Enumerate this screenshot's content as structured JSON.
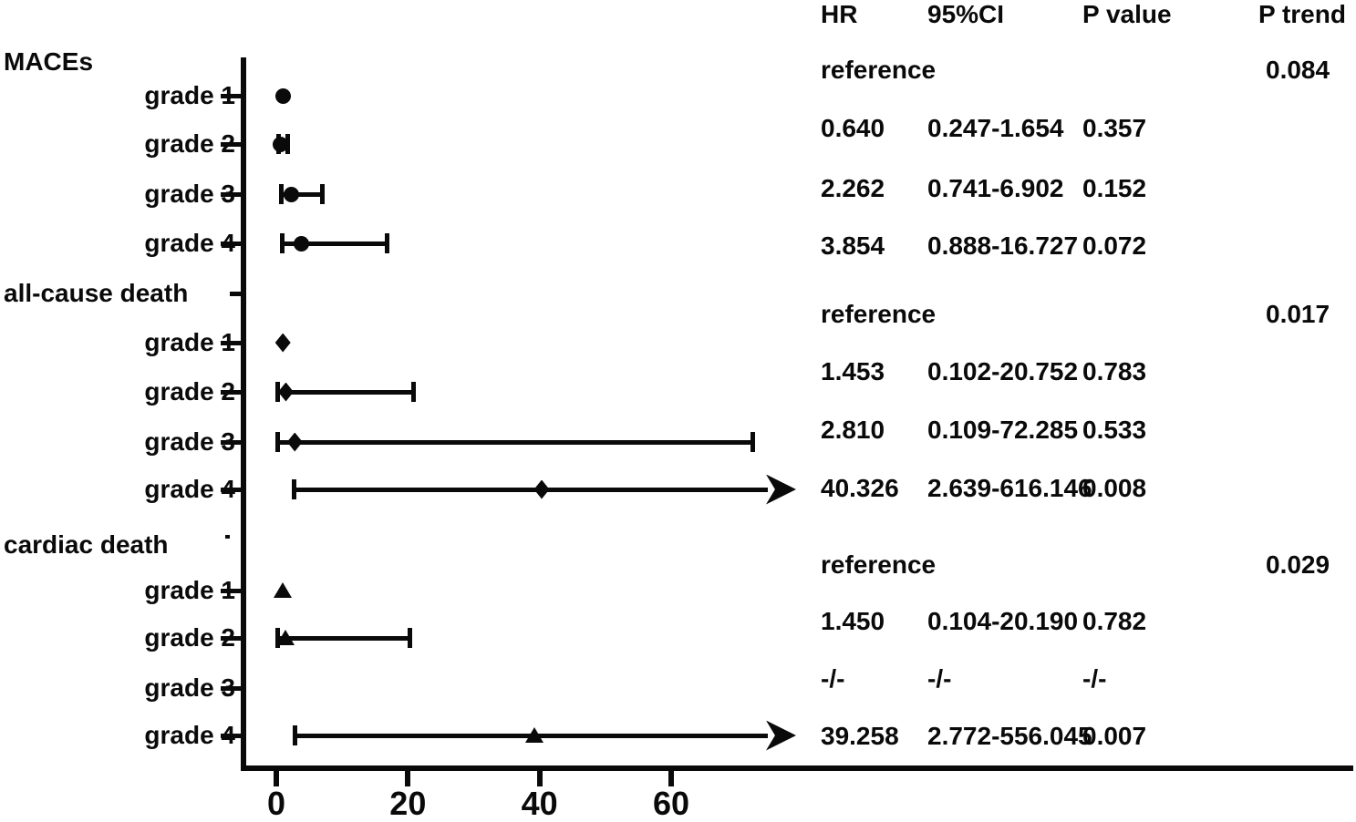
{
  "table": {
    "headers": [
      "HR",
      "95%CI",
      "P value",
      "P trend"
    ]
  },
  "chart_data": {
    "type": "forest",
    "title": "",
    "xlabel": "",
    "x_axis_represents": "hazard ratio",
    "xlim": [
      0,
      78
    ],
    "x_ticks": [
      0,
      20,
      40,
      60
    ],
    "x_tick_labels": [
      "0",
      "20",
      "40",
      "60"
    ],
    "grid": false,
    "groups": [
      {
        "label": "MACEs",
        "marker": "circle",
        "p_trend": "0.084",
        "rows": [
          {
            "label": "grade 1",
            "hr": 1,
            "hr_text": "reference",
            "ci_low": null,
            "ci_high": null,
            "ci_text": "",
            "p": "",
            "arrow": false
          },
          {
            "label": "grade 2",
            "hr": 0.64,
            "hr_text": "0.640",
            "ci_low": 0.247,
            "ci_high": 1.654,
            "ci_text": "0.247-1.654",
            "p": "0.357",
            "arrow": false
          },
          {
            "label": "grade 3",
            "hr": 2.262,
            "hr_text": "2.262",
            "ci_low": 0.741,
            "ci_high": 6.902,
            "ci_text": "0.741-6.902",
            "p": "0.152",
            "arrow": false
          },
          {
            "label": "grade 4",
            "hr": 3.854,
            "hr_text": "3.854",
            "ci_low": 0.888,
            "ci_high": 16.727,
            "ci_text": "0.888-16.727",
            "p": "0.072",
            "arrow": false
          }
        ]
      },
      {
        "label": "all-cause death",
        "marker": "diamond",
        "p_trend": "0.017",
        "rows": [
          {
            "label": "grade 1",
            "hr": 1,
            "hr_text": "reference",
            "ci_low": null,
            "ci_high": null,
            "ci_text": "",
            "p": "",
            "arrow": false
          },
          {
            "label": "grade 2",
            "hr": 1.453,
            "hr_text": "1.453",
            "ci_low": 0.102,
            "ci_high": 20.752,
            "ci_text": "0.102-20.752",
            "p": "0.783",
            "arrow": false
          },
          {
            "label": "grade 3",
            "hr": 2.81,
            "hr_text": "2.810",
            "ci_low": 0.109,
            "ci_high": 72.285,
            "ci_text": "0.109-72.285",
            "p": "0.533",
            "arrow": false
          },
          {
            "label": "grade 4",
            "hr": 40.326,
            "hr_text": "40.326",
            "ci_low": 2.639,
            "ci_high": 616.146,
            "ci_text": "2.639-616.146",
            "p": "0.008",
            "arrow": true
          }
        ]
      },
      {
        "label": "cardiac death",
        "marker": "triangle",
        "p_trend": "0.029",
        "rows": [
          {
            "label": "grade 1",
            "hr": 1,
            "hr_text": "reference",
            "ci_low": null,
            "ci_high": null,
            "ci_text": "",
            "p": "",
            "arrow": false
          },
          {
            "label": "grade 2",
            "hr": 1.45,
            "hr_text": "1.450",
            "ci_low": 0.104,
            "ci_high": 20.19,
            "ci_text": "0.104-20.190",
            "p": "0.782",
            "arrow": false
          },
          {
            "label": "grade 3",
            "hr": null,
            "hr_text": "-/-",
            "ci_low": null,
            "ci_high": null,
            "ci_text": "-/-",
            "p": "-/-",
            "arrow": false
          },
          {
            "label": "grade 4",
            "hr": 39.258,
            "hr_text": "39.258",
            "ci_low": 2.772,
            "ci_high": 556.045,
            "ci_text": "2.772-556.045",
            "p": "0.007",
            "arrow": true
          }
        ]
      }
    ]
  }
}
